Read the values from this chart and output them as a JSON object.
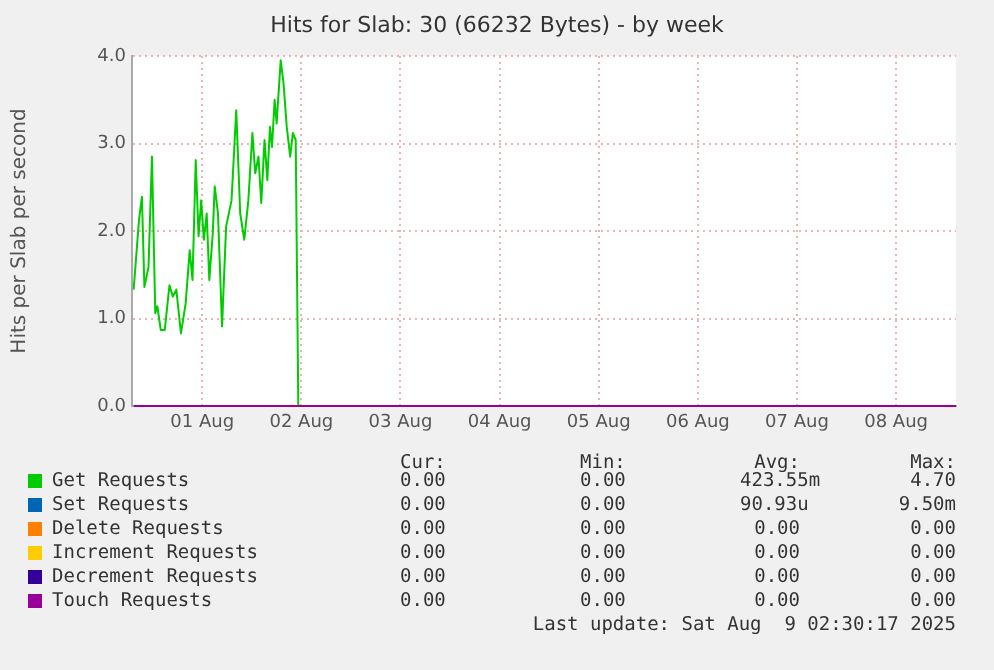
{
  "chart_data": {
    "type": "line",
    "title": "Hits for Slab: 30 (66232 Bytes) - by week",
    "ylabel": "Hits per Slab per second",
    "xlim": [
      "2025-07-31T19:00",
      "2025-08-09T02:30"
    ],
    "xticks": [
      {
        "value": "2025-08-01T12:00",
        "label": "01 Aug"
      },
      {
        "value": "2025-08-02T12:00",
        "label": "02 Aug"
      },
      {
        "value": "2025-08-03T12:00",
        "label": "03 Aug"
      },
      {
        "value": "2025-08-04T12:00",
        "label": "04 Aug"
      },
      {
        "value": "2025-08-05T12:00",
        "label": "05 Aug"
      },
      {
        "value": "2025-08-06T12:00",
        "label": "06 Aug"
      },
      {
        "value": "2025-08-07T12:00",
        "label": "07 Aug"
      },
      {
        "value": "2025-08-08T12:00",
        "label": "08 Aug"
      }
    ],
    "ylim": [
      0,
      4
    ],
    "yticks": [
      {
        "value": 0,
        "label": "0.0"
      },
      {
        "value": 1,
        "label": "1.0"
      },
      {
        "value": 2,
        "label": "2.0"
      },
      {
        "value": 3,
        "label": "3.0"
      },
      {
        "value": 4,
        "label": "4.0"
      }
    ],
    "grid": true,
    "legend": "bottom",
    "marker": "none",
    "line_style": "solid",
    "series": [
      {
        "name": "Get Requests",
        "color": "#00cc00",
        "x": [
          "2025-07-31T19:24",
          "2025-07-31T20:42",
          "2025-07-31T21:24",
          "2025-07-31T22:00",
          "2025-07-31T23:00",
          "2025-07-31T23:50",
          "2025-08-01T00:38",
          "2025-08-01T01:08",
          "2025-08-01T01:58",
          "2025-08-01T02:56",
          "2025-08-01T04:04",
          "2025-08-01T04:54",
          "2025-08-01T05:44",
          "2025-08-01T06:51",
          "2025-08-01T07:59",
          "2025-08-01T08:58",
          "2025-08-01T09:39",
          "2025-08-01T10:26",
          "2025-08-01T11:07",
          "2025-08-01T11:45",
          "2025-08-01T12:24",
          "2025-08-01T13:05",
          "2025-08-01T13:43",
          "2025-08-01T14:33",
          "2025-08-01T15:02",
          "2025-08-01T15:49",
          "2025-08-01T16:48",
          "2025-08-01T17:47",
          "2025-08-01T19:06",
          "2025-08-01T20:14",
          "2025-08-01T21:12",
          "2025-08-01T22:11",
          "2025-08-01T23:10",
          "2025-08-02T00:09",
          "2025-08-02T00:50",
          "2025-08-02T01:37",
          "2025-08-02T02:18",
          "2025-08-02T03:05",
          "2025-08-02T03:46",
          "2025-08-02T04:24",
          "2025-08-02T04:54",
          "2025-08-02T05:32",
          "2025-08-02T06:01",
          "2025-08-02T07:00",
          "2025-08-02T07:41",
          "2025-08-02T08:28",
          "2025-08-02T09:18",
          "2025-08-02T09:56",
          "2025-08-02T10:38",
          "2025-08-02T11:16",
          "2025-08-09T02:30"
        ],
        "values": [
          1.33,
          2.13,
          2.39,
          1.36,
          1.59,
          2.85,
          1.06,
          1.14,
          0.87,
          0.87,
          1.38,
          1.25,
          1.33,
          0.83,
          1.17,
          1.78,
          1.44,
          2.81,
          1.94,
          2.35,
          1.9,
          2.2,
          1.44,
          1.97,
          2.51,
          2.2,
          0.91,
          2.05,
          2.35,
          3.38,
          2.2,
          1.9,
          2.35,
          3.12,
          2.66,
          2.85,
          2.32,
          3.04,
          2.58,
          3.19,
          2.96,
          3.5,
          3.23,
          3.95,
          3.69,
          3.19,
          2.85,
          3.12,
          3.04,
          0,
          0
        ]
      },
      {
        "name": "Set Requests",
        "color": "#0066b3"
      },
      {
        "name": "Delete Requests",
        "color": "#ff8000"
      },
      {
        "name": "Increment Requests",
        "color": "#ffcc00"
      },
      {
        "name": "Decrement Requests",
        "color": "#330099"
      },
      {
        "name": "Touch Requests",
        "color": "#990099",
        "x": [
          "2025-07-31T19:24",
          "2025-08-09T02:30"
        ],
        "values": [
          0,
          0
        ]
      }
    ],
    "annotations": [
      "Cur:",
      "Min:",
      "Avg:",
      "Max:",
      "0.00",
      "0.00",
      "423.55m",
      "4.70",
      "0.00",
      "0.00",
      "90.93u",
      "9.50m",
      "0.00",
      "0.00",
      "0.00",
      "0.00",
      "0.00",
      "0.00",
      "0.00",
      "0.00",
      "0.00",
      "0.00",
      "0.00",
      "0.00",
      "0.00",
      "0.00",
      "0.00",
      "0.00",
      "Last update: Sat Aug  9 02:30:17 2025"
    ]
  }
}
